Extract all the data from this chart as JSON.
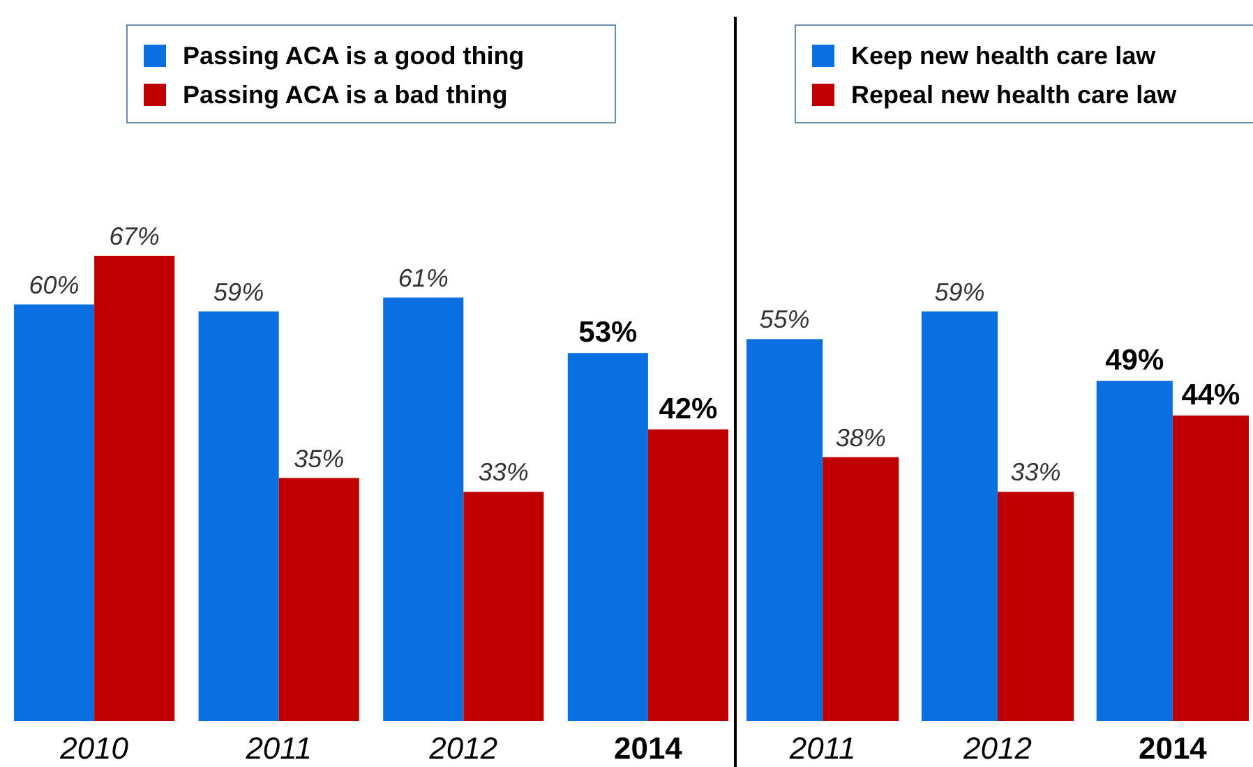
{
  "chart_data": [
    {
      "type": "bar",
      "categories": [
        "2010",
        "2011",
        "2012",
        "2014"
      ],
      "series": [
        {
          "name": "Passing ACA is a good thing",
          "color": "#0a6fe0",
          "values": [
            60,
            59,
            61,
            53
          ],
          "value_labels": [
            "60%",
            "59%",
            "61%",
            "53%"
          ]
        },
        {
          "name": "Passing ACA is a bad thing",
          "color": "#c00000",
          "values": [
            67,
            35,
            33,
            42
          ],
          "value_labels": [
            "67%",
            "35%",
            "33%",
            "42%"
          ]
        }
      ],
      "tick_labels": "x",
      "legend": "top"
    },
    {
      "type": "bar",
      "categories": [
        "2011",
        "2012",
        "2014"
      ],
      "series": [
        {
          "name": "Keep new health care law",
          "color": "#0a6fe0",
          "values": [
            55,
            59,
            49
          ],
          "value_labels": [
            "55%",
            "59%",
            "49%"
          ]
        },
        {
          "name": "Repeal new health care law",
          "color": "#c00000",
          "values": [
            38,
            33,
            44
          ],
          "value_labels": [
            "38%",
            "33%",
            "44%"
          ]
        }
      ],
      "tick_labels": "x",
      "legend": "top"
    }
  ]
}
